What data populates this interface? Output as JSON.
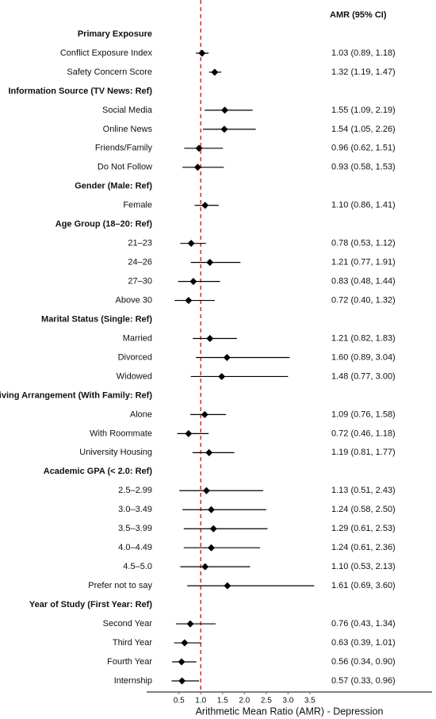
{
  "chart_data": {
    "type": "forest",
    "column_header": "AMR (95% CI)",
    "xlabel": "Arithmetic Mean Ratio (AMR) - Depression",
    "xlim": [
      -0.24,
      6.3
    ],
    "xticks": [
      0.5,
      {
        "value": 1,
        "label": "1.0"
      },
      1.5,
      {
        "value": 2,
        "label": "2.0"
      },
      2.5,
      {
        "value": 3,
        "label": "3.0"
      },
      3.5
    ],
    "reference": 1,
    "reference_color": "#e8302a",
    "color": "#000000",
    "groups": [
      {
        "title": "Primary Exposure",
        "rows": [
          {
            "label": "Conflict Exposure Index",
            "value": 1.03,
            "lower": 0.89,
            "upper": 1.18,
            "value_label": "1.03 (0.89, 1.18)"
          },
          {
            "label": "Safety Concern Score",
            "value": 1.32,
            "lower": 1.19,
            "upper": 1.47,
            "value_label": "1.32 (1.19, 1.47)"
          }
        ]
      },
      {
        "title": "Information Source (TV News: Ref)",
        "rows": [
          {
            "label": "Social Media",
            "value": 1.55,
            "lower": 1.09,
            "upper": 2.19,
            "value_label": "1.55 (1.09, 2.19)"
          },
          {
            "label": "Online News",
            "value": 1.54,
            "lower": 1.05,
            "upper": 2.26,
            "value_label": "1.54 (1.05, 2.26)"
          },
          {
            "label": "Friends/Family",
            "value": 0.96,
            "lower": 0.62,
            "upper": 1.51,
            "value_label": "0.96 (0.62, 1.51)"
          },
          {
            "label": "Do Not Follow",
            "value": 0.93,
            "lower": 0.58,
            "upper": 1.53,
            "value_label": "0.93 (0.58, 1.53)"
          }
        ]
      },
      {
        "title": "Gender (Male: Ref)",
        "rows": [
          {
            "label": "Female",
            "value": 1.1,
            "lower": 0.86,
            "upper": 1.41,
            "value_label": "1.10 (0.86, 1.41)"
          }
        ]
      },
      {
        "title": "Age Group (18–20: Ref)",
        "rows": [
          {
            "label": "21–23",
            "value": 0.78,
            "lower": 0.53,
            "upper": 1.12,
            "value_label": "0.78 (0.53, 1.12)"
          },
          {
            "label": "24–26",
            "value": 1.21,
            "lower": 0.77,
            "upper": 1.91,
            "value_label": "1.21 (0.77, 1.91)"
          },
          {
            "label": "27–30",
            "value": 0.83,
            "lower": 0.48,
            "upper": 1.44,
            "value_label": "0.83 (0.48, 1.44)"
          },
          {
            "label": "Above 30",
            "value": 0.72,
            "lower": 0.4,
            "upper": 1.32,
            "value_label": "0.72 (0.40, 1.32)"
          }
        ]
      },
      {
        "title": "Marital Status (Single: Ref)",
        "rows": [
          {
            "label": "Married",
            "value": 1.21,
            "lower": 0.82,
            "upper": 1.83,
            "value_label": "1.21 (0.82, 1.83)"
          },
          {
            "label": "Divorced",
            "value": 1.6,
            "lower": 0.89,
            "upper": 3.04,
            "value_label": "1.60 (0.89, 3.04)"
          },
          {
            "label": "Widowed",
            "value": 1.48,
            "lower": 0.77,
            "upper": 3.0,
            "value_label": "1.48 (0.77, 3.00)"
          }
        ]
      },
      {
        "title": "Living Arrangement (With Family: Ref)",
        "rows": [
          {
            "label": "Alone",
            "value": 1.09,
            "lower": 0.76,
            "upper": 1.58,
            "value_label": "1.09 (0.76, 1.58)"
          },
          {
            "label": "With Roommate",
            "value": 0.72,
            "lower": 0.46,
            "upper": 1.18,
            "value_label": "0.72 (0.46, 1.18)"
          },
          {
            "label": "University Housing",
            "value": 1.19,
            "lower": 0.81,
            "upper": 1.77,
            "value_label": "1.19 (0.81, 1.77)"
          }
        ]
      },
      {
        "title": "Academic GPA (< 2.0: Ref)",
        "rows": [
          {
            "label": "2.5–2.99",
            "value": 1.13,
            "lower": 0.51,
            "upper": 2.43,
            "value_label": "1.13 (0.51, 2.43)"
          },
          {
            "label": "3.0–3.49",
            "value": 1.24,
            "lower": 0.58,
            "upper": 2.5,
            "value_label": "1.24 (0.58, 2.50)"
          },
          {
            "label": "3.5–3.99",
            "value": 1.29,
            "lower": 0.61,
            "upper": 2.53,
            "value_label": "1.29 (0.61, 2.53)"
          },
          {
            "label": "4.0–4.49",
            "value": 1.24,
            "lower": 0.61,
            "upper": 2.36,
            "value_label": "1.24 (0.61, 2.36)"
          },
          {
            "label": "4.5–5.0",
            "value": 1.1,
            "lower": 0.53,
            "upper": 2.13,
            "value_label": "1.10 (0.53, 2.13)"
          },
          {
            "label": "Prefer not to say",
            "value": 1.61,
            "lower": 0.69,
            "upper": 3.6,
            "value_label": "1.61 (0.69, 3.60)"
          }
        ]
      },
      {
        "title": "Year of Study (First Year: Ref)",
        "rows": [
          {
            "label": "Second Year",
            "value": 0.76,
            "lower": 0.43,
            "upper": 1.34,
            "value_label": "0.76 (0.43, 1.34)"
          },
          {
            "label": "Third Year",
            "value": 0.63,
            "lower": 0.39,
            "upper": 1.01,
            "value_label": "0.63 (0.39, 1.01)"
          },
          {
            "label": "Fourth Year",
            "value": 0.56,
            "lower": 0.34,
            "upper": 0.9,
            "value_label": "0.56 (0.34, 0.90)"
          },
          {
            "label": "Internship",
            "value": 0.57,
            "lower": 0.33,
            "upper": 0.96,
            "value_label": "0.57 (0.33, 0.96)"
          }
        ]
      }
    ]
  }
}
